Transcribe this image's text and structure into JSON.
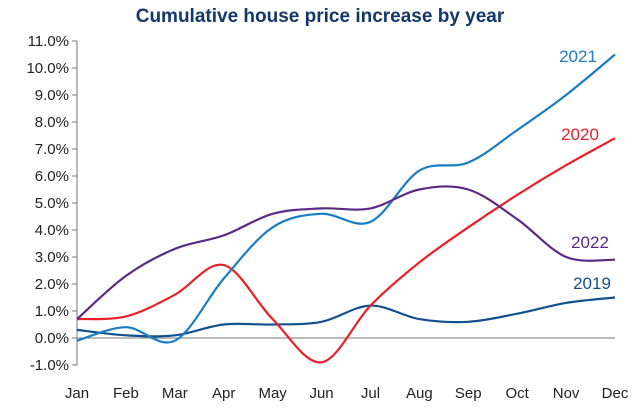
{
  "chart_data": {
    "type": "line",
    "title": "Cumulative house price increase by year",
    "xlabel": "",
    "ylabel": "",
    "categories": [
      "Jan",
      "Feb",
      "Mar",
      "Apr",
      "May",
      "Jun",
      "Jul",
      "Aug",
      "Sep",
      "Oct",
      "Nov",
      "Dec"
    ],
    "ylim": [
      -1.0,
      11.0
    ],
    "yticks": [
      "-1.0%",
      "0.0%",
      "1.0%",
      "2.0%",
      "3.0%",
      "4.0%",
      "5.0%",
      "6.0%",
      "7.0%",
      "8.0%",
      "9.0%",
      "10.0%",
      "11.0%"
    ],
    "ytick_values": [
      -1,
      0,
      1,
      2,
      3,
      4,
      5,
      6,
      7,
      8,
      9,
      10,
      11
    ],
    "grid": false,
    "series": [
      {
        "name": "2019",
        "color": "#12508f",
        "values": [
          0.3,
          0.1,
          0.1,
          0.5,
          0.5,
          0.6,
          1.2,
          0.7,
          0.6,
          0.9,
          1.3,
          1.5
        ]
      },
      {
        "name": "2020",
        "color": "#e8202a",
        "values": [
          0.7,
          0.8,
          1.6,
          2.7,
          0.7,
          -0.9,
          1.2,
          2.8,
          4.1,
          5.3,
          6.4,
          7.4
        ]
      },
      {
        "name": "2021",
        "color": "#1a7dc4",
        "values": [
          -0.1,
          0.4,
          -0.1,
          2.2,
          4.1,
          4.6,
          4.3,
          6.2,
          6.5,
          7.7,
          9.0,
          10.5
        ]
      },
      {
        "name": "2022",
        "color": "#5b2a86",
        "values": [
          0.7,
          2.3,
          3.3,
          3.8,
          4.6,
          4.8,
          4.8,
          5.5,
          5.5,
          4.4,
          3.0,
          2.9
        ]
      }
    ]
  }
}
